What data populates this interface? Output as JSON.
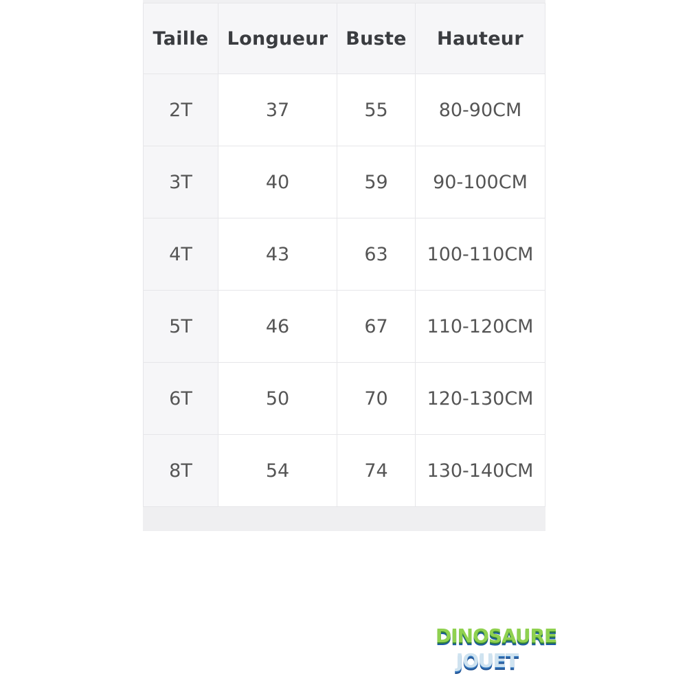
{
  "table": {
    "headers": [
      "Taille",
      "Longueur",
      "Buste",
      "Hauteur"
    ],
    "rows": [
      [
        "2T",
        "37",
        "55",
        "80-90CM"
      ],
      [
        "3T",
        "40",
        "59",
        "90-100CM"
      ],
      [
        "4T",
        "43",
        "63",
        "100-110CM"
      ],
      [
        "5T",
        "46",
        "67",
        "110-120CM"
      ],
      [
        "6T",
        "50",
        "70",
        "120-130CM"
      ],
      [
        "8T",
        "54",
        "74",
        "130-140CM"
      ]
    ]
  },
  "logo": {
    "line1": "DINOSAURE",
    "line2": "JOUET"
  }
}
